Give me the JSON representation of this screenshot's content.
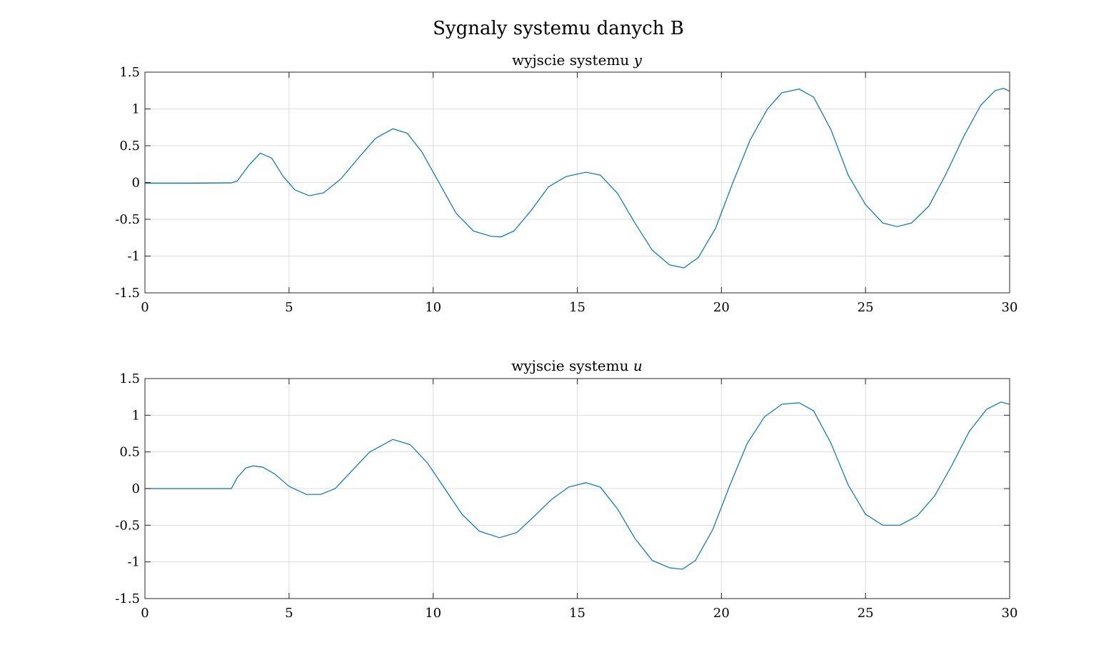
{
  "figure": {
    "title": "Sygnaly systemu danych B"
  },
  "chart_data": [
    {
      "type": "line",
      "title": "wyjscie systemu ",
      "title_var": "y",
      "xlabel": "",
      "ylabel": "",
      "xlim": [
        0,
        30
      ],
      "ylim": [
        -1.5,
        1.5
      ],
      "xticks": [
        "0",
        "5",
        "10",
        "15",
        "20",
        "25",
        "30"
      ],
      "yticks": [
        "1.5",
        "1",
        "0.5",
        "0",
        "-0.5",
        "-1",
        "-1.5"
      ],
      "grid": true,
      "series": [
        {
          "color": "#0072BD",
          "x": [
            0,
            1.5,
            3.0,
            3.2,
            3.6,
            4.0,
            4.4,
            4.8,
            5.2,
            5.7,
            6.2,
            6.8,
            7.4,
            8.0,
            8.6,
            9.1,
            9.6,
            10.2,
            10.8,
            11.4,
            12.0,
            12.35,
            12.8,
            13.4,
            14.0,
            14.6,
            15.3,
            15.8,
            16.4,
            17.0,
            17.6,
            18.2,
            18.7,
            19.2,
            19.8,
            20.4,
            21.0,
            21.6,
            22.1,
            22.7,
            23.2,
            23.8,
            24.4,
            25.0,
            25.6,
            26.1,
            26.6,
            27.2,
            27.8,
            28.4,
            29.0,
            29.5,
            29.8,
            30.0
          ],
          "values": [
            -0.01,
            -0.01,
            -0.005,
            0.02,
            0.23,
            0.4,
            0.33,
            0.08,
            -0.1,
            -0.18,
            -0.14,
            0.05,
            0.33,
            0.6,
            0.73,
            0.67,
            0.42,
            0.0,
            -0.42,
            -0.66,
            -0.73,
            -0.74,
            -0.66,
            -0.38,
            -0.06,
            0.08,
            0.14,
            0.1,
            -0.15,
            -0.55,
            -0.92,
            -1.12,
            -1.16,
            -1.02,
            -0.62,
            0.0,
            0.58,
            1.0,
            1.22,
            1.27,
            1.16,
            0.72,
            0.1,
            -0.3,
            -0.55,
            -0.6,
            -0.55,
            -0.32,
            0.12,
            0.62,
            1.05,
            1.25,
            1.28,
            1.24
          ]
        }
      ]
    },
    {
      "type": "line",
      "title": "wyjscie systemu ",
      "title_var": "u",
      "xlabel": "",
      "ylabel": "",
      "xlim": [
        0,
        30
      ],
      "ylim": [
        -1.5,
        1.5
      ],
      "xticks": [
        "0",
        "5",
        "10",
        "15",
        "20",
        "25",
        "30"
      ],
      "yticks": [
        "1.5",
        "1",
        "0.5",
        "0",
        "-0.5",
        "-1",
        "-1.5"
      ],
      "grid": true,
      "series": [
        {
          "color": "#0072BD",
          "x": [
            0,
            3.0,
            3.2,
            3.5,
            3.75,
            4.1,
            4.5,
            5.0,
            5.6,
            6.1,
            6.6,
            7.2,
            7.8,
            8.6,
            9.2,
            9.8,
            10.4,
            11.0,
            11.6,
            12.3,
            12.9,
            13.5,
            14.1,
            14.7,
            15.3,
            15.8,
            16.4,
            17.0,
            17.6,
            18.2,
            18.65,
            19.1,
            19.7,
            20.3,
            20.9,
            21.5,
            22.1,
            22.7,
            23.2,
            23.8,
            24.4,
            25.0,
            25.6,
            26.2,
            26.8,
            27.4,
            28.0,
            28.6,
            29.2,
            29.7,
            30.0
          ],
          "values": [
            0,
            0,
            0.15,
            0.28,
            0.31,
            0.29,
            0.2,
            0.03,
            -0.08,
            -0.08,
            0.0,
            0.25,
            0.5,
            0.67,
            0.6,
            0.35,
            0.0,
            -0.35,
            -0.58,
            -0.67,
            -0.6,
            -0.38,
            -0.15,
            0.02,
            0.08,
            0.02,
            -0.28,
            -0.68,
            -0.98,
            -1.08,
            -1.1,
            -0.98,
            -0.56,
            0.05,
            0.62,
            0.98,
            1.15,
            1.17,
            1.06,
            0.62,
            0.05,
            -0.35,
            -0.5,
            -0.5,
            -0.37,
            -0.1,
            0.32,
            0.78,
            1.08,
            1.18,
            1.15
          ]
        }
      ]
    }
  ]
}
